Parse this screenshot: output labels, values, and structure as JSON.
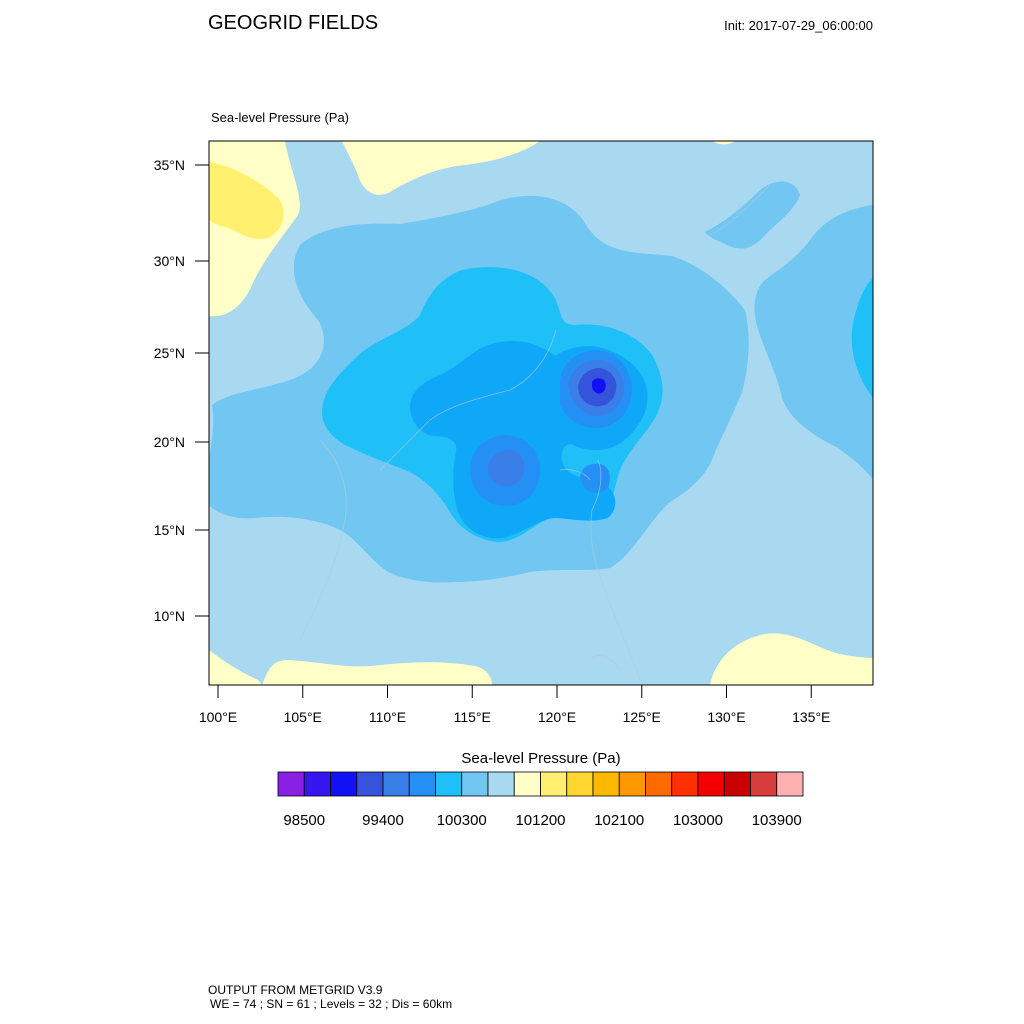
{
  "header": {
    "title": "GEOGRID FIELDS",
    "init": "Init: 2017-07-29_06:00:00"
  },
  "panel": {
    "field_title": "Sea-level Pressure   (Pa)"
  },
  "axes": {
    "lat_labels": [
      {
        "label": "35°N",
        "lat": 35
      },
      {
        "label": "30°N",
        "lat": 30
      },
      {
        "label": "25°N",
        "lat": 25
      },
      {
        "label": "20°N",
        "lat": 20
      },
      {
        "label": "15°N",
        "lat": 15
      },
      {
        "label": "10°N",
        "lat": 10
      }
    ],
    "lon_labels": [
      {
        "label": "100°E",
        "lon": 100
      },
      {
        "label": "105°E",
        "lon": 105
      },
      {
        "label": "110°E",
        "lon": 110
      },
      {
        "label": "115°E",
        "lon": 115
      },
      {
        "label": "120°E",
        "lon": 120
      },
      {
        "label": "125°E",
        "lon": 125
      },
      {
        "label": "130°E",
        "lon": 130
      },
      {
        "label": "135°E",
        "lon": 135
      }
    ]
  },
  "colorbar": {
    "title": "Sea-level Pressure  (Pa)",
    "colors": [
      "#8a1fe6",
      "#3616f0",
      "#1111f5",
      "#3653db",
      "#3a7fe8",
      "#2490f5",
      "#1fbff8",
      "#72c7f2",
      "#a8d9f0",
      "#ffffc8",
      "#fff070",
      "#ffd530",
      "#ffb800",
      "#ff9800",
      "#ff6a00",
      "#ff3000",
      "#f50000",
      "#c80000",
      "#d83c3c",
      "#ffb0b0"
    ],
    "labels": [
      "98500",
      "99400",
      "100300",
      "101200",
      "102100",
      "103000",
      "103900"
    ]
  },
  "footer": {
    "line1": "OUTPUT FROM METGRID V3.9",
    "line2": "WE = 74 ; SN = 61 ; Levels = 32 ; Dis = 60km"
  }
}
